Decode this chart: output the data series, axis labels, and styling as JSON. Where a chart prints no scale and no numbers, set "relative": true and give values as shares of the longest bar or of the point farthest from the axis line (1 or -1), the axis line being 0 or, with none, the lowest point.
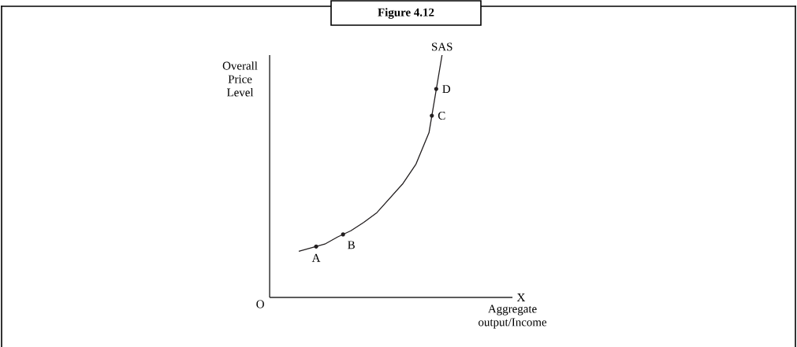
{
  "chart_data": {
    "type": "line",
    "title": "Figure 4.12",
    "xlabel": "Aggregate output/Income",
    "ylabel": "Overall Price Level",
    "relative": true,
    "categories": [
      null,
      null,
      null,
      null,
      null,
      null,
      null,
      null,
      null,
      null,
      null,
      null
    ],
    "series": [
      {
        "color": "#231f20",
        "values": [
          0.19,
          0.205,
          0.22,
          0.25,
          0.275,
          0.31,
          0.35,
          0.41,
          0.47,
          0.55,
          0.68,
          1.0
        ]
      }
    ],
    "annotations": [
      {
        "text": "A",
        "y": 0.21
      },
      {
        "text": "B",
        "y": 0.26
      },
      "C",
      "D",
      {
        "text": "SAS",
        "y": 1.0
      },
      "O",
      "X"
    ]
  }
}
